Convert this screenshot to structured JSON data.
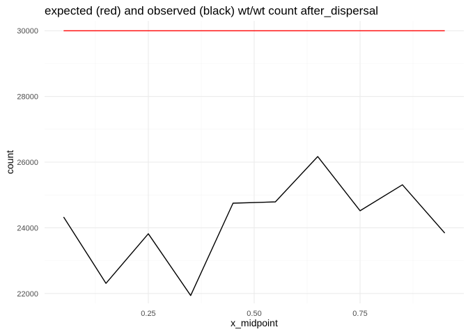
{
  "chart_data": {
    "type": "line",
    "title": "expected (red) and observed (black) wt/wt count after_dispersal",
    "xlabel": "x_midpoint",
    "ylabel": "count",
    "xlim": [
      0.005,
      0.995
    ],
    "ylim": [
      21700,
      30300
    ],
    "x_major_ticks": [
      0.25,
      0.5,
      0.75
    ],
    "x_tick_labels": [
      "0.25",
      "0.50",
      "0.75"
    ],
    "x_minor_ticks": [
      0.125,
      0.375,
      0.625,
      0.875
    ],
    "y_major_ticks": [
      22000,
      24000,
      26000,
      28000,
      30000
    ],
    "y_tick_labels": [
      "22000",
      "24000",
      "26000",
      "28000",
      "30000"
    ],
    "y_minor_ticks": [
      23000,
      25000,
      27000,
      29000
    ],
    "grid": true,
    "legend": "none",
    "x": [
      0.05,
      0.15,
      0.25,
      0.35,
      0.45,
      0.55,
      0.65,
      0.75,
      0.85,
      0.95
    ],
    "series": [
      {
        "color": "#ff0000",
        "values": [
          30000,
          30000,
          30000,
          30000,
          30000,
          30000,
          30000,
          30000,
          30000,
          30000
        ]
      },
      {
        "color": "#000000",
        "values": [
          24330,
          22310,
          23820,
          21940,
          24750,
          24790,
          26170,
          24520,
          25310,
          23840
        ]
      }
    ]
  }
}
